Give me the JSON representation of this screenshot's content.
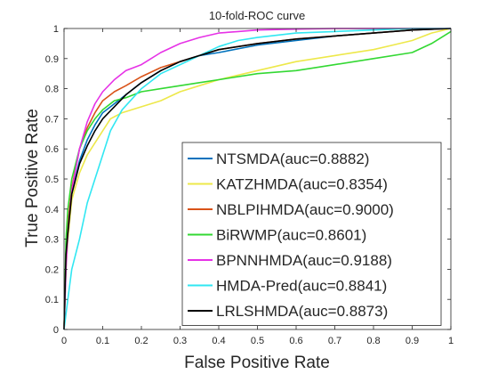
{
  "chart_data": {
    "type": "line",
    "title": "10-fold-ROC curve",
    "xlabel": "False Positive Rate",
    "ylabel": "True Positive Rate",
    "xlim": [
      0,
      1
    ],
    "ylim": [
      0,
      1
    ],
    "xticks": [
      "0",
      "0.1",
      "0.2",
      "0.3",
      "0.4",
      "0.5",
      "0.6",
      "0.7",
      "0.8",
      "0.9",
      "1"
    ],
    "yticks": [
      "0",
      "0.1",
      "0.2",
      "0.3",
      "0.4",
      "0.5",
      "0.6",
      "0.7",
      "0.8",
      "0.9",
      "1"
    ],
    "grid": false,
    "legend_position": "bottom-right",
    "series": [
      {
        "name": "NTSMDA(auc=0.8882)",
        "color": "#0072BD",
        "x": [
          0,
          0.005,
          0.01,
          0.02,
          0.04,
          0.06,
          0.08,
          0.1,
          0.13,
          0.16,
          0.2,
          0.25,
          0.3,
          0.35,
          0.4,
          0.5,
          0.6,
          0.7,
          0.8,
          0.9,
          1.0
        ],
        "y": [
          0,
          0.22,
          0.33,
          0.45,
          0.56,
          0.63,
          0.68,
          0.72,
          0.75,
          0.78,
          0.82,
          0.86,
          0.89,
          0.91,
          0.92,
          0.945,
          0.96,
          0.975,
          0.985,
          0.995,
          1.0
        ]
      },
      {
        "name": "KATZHMDA(auc=0.8354)",
        "color": "#EDE84A",
        "x": [
          0,
          0.005,
          0.01,
          0.02,
          0.04,
          0.06,
          0.08,
          0.1,
          0.12,
          0.15,
          0.2,
          0.25,
          0.3,
          0.35,
          0.4,
          0.5,
          0.6,
          0.7,
          0.8,
          0.85,
          0.9,
          0.95,
          1.0
        ],
        "y": [
          0,
          0.2,
          0.3,
          0.43,
          0.52,
          0.58,
          0.62,
          0.66,
          0.7,
          0.72,
          0.74,
          0.76,
          0.79,
          0.81,
          0.83,
          0.86,
          0.89,
          0.91,
          0.93,
          0.945,
          0.96,
          0.985,
          1.0
        ]
      },
      {
        "name": "NBLPIHMDA(auc=0.9000)",
        "color": "#D95319",
        "x": [
          0,
          0.005,
          0.01,
          0.02,
          0.04,
          0.06,
          0.08,
          0.1,
          0.13,
          0.16,
          0.2,
          0.25,
          0.3,
          0.35,
          0.4,
          0.5,
          0.6,
          0.7,
          0.8,
          0.9,
          1.0
        ],
        "y": [
          0,
          0.25,
          0.35,
          0.47,
          0.6,
          0.67,
          0.72,
          0.76,
          0.79,
          0.81,
          0.84,
          0.87,
          0.89,
          0.91,
          0.93,
          0.95,
          0.965,
          0.975,
          0.985,
          0.995,
          1.0
        ]
      },
      {
        "name": "BiRWMP(auc=0.8601)",
        "color": "#33D833",
        "x": [
          0,
          0.005,
          0.01,
          0.02,
          0.04,
          0.06,
          0.08,
          0.1,
          0.13,
          0.16,
          0.2,
          0.25,
          0.3,
          0.35,
          0.4,
          0.5,
          0.6,
          0.65,
          0.7,
          0.8,
          0.9,
          0.95,
          1.0
        ],
        "y": [
          0,
          0.3,
          0.4,
          0.5,
          0.6,
          0.66,
          0.7,
          0.73,
          0.76,
          0.77,
          0.79,
          0.8,
          0.81,
          0.82,
          0.83,
          0.85,
          0.86,
          0.87,
          0.88,
          0.9,
          0.92,
          0.95,
          0.99
        ]
      },
      {
        "name": "BPNNHMDA(auc=0.9188)",
        "color": "#E632E6",
        "x": [
          0,
          0.005,
          0.01,
          0.02,
          0.04,
          0.06,
          0.08,
          0.1,
          0.13,
          0.16,
          0.2,
          0.25,
          0.3,
          0.35,
          0.4,
          0.45,
          0.5,
          0.6,
          0.7,
          0.8,
          0.9,
          1.0
        ],
        "y": [
          0,
          0.2,
          0.32,
          0.46,
          0.6,
          0.69,
          0.75,
          0.79,
          0.83,
          0.86,
          0.88,
          0.92,
          0.95,
          0.97,
          0.985,
          0.99,
          0.995,
          0.998,
          1.0,
          1.0,
          1.0,
          1.0
        ]
      },
      {
        "name": "HMDA-Pred(auc=0.8841)",
        "color": "#31E7F2",
        "x": [
          0,
          0.01,
          0.02,
          0.04,
          0.06,
          0.08,
          0.1,
          0.12,
          0.15,
          0.2,
          0.25,
          0.3,
          0.35,
          0.4,
          0.45,
          0.5,
          0.6,
          0.7,
          0.8,
          0.9,
          1.0
        ],
        "y": [
          0,
          0.1,
          0.2,
          0.3,
          0.42,
          0.5,
          0.58,
          0.66,
          0.73,
          0.8,
          0.85,
          0.88,
          0.91,
          0.94,
          0.96,
          0.97,
          0.985,
          0.99,
          0.995,
          1.0,
          1.0
        ]
      },
      {
        "name": "LRLSHMDA(auc=0.8873)",
        "color": "#000000",
        "x": [
          0,
          0.005,
          0.01,
          0.02,
          0.04,
          0.06,
          0.08,
          0.1,
          0.13,
          0.16,
          0.2,
          0.25,
          0.3,
          0.35,
          0.4,
          0.5,
          0.6,
          0.7,
          0.8,
          0.9,
          1.0
        ],
        "y": [
          0,
          0.25,
          0.32,
          0.45,
          0.55,
          0.61,
          0.66,
          0.7,
          0.74,
          0.78,
          0.82,
          0.86,
          0.89,
          0.91,
          0.93,
          0.95,
          0.965,
          0.975,
          0.985,
          0.995,
          1.0
        ]
      }
    ]
  }
}
